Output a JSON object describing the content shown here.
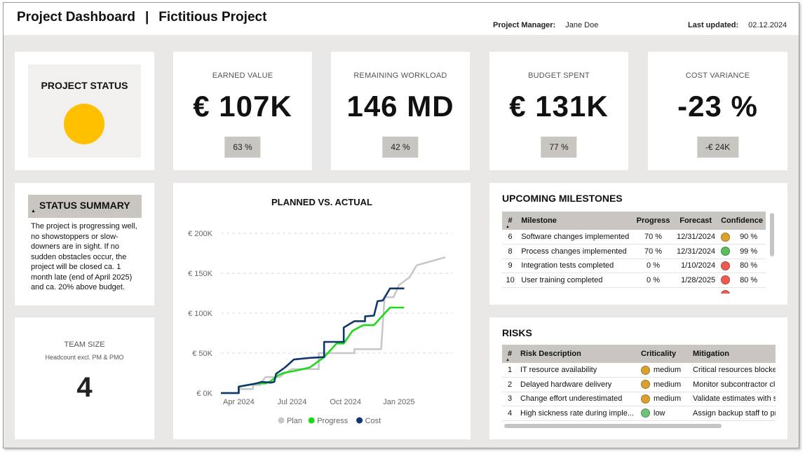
{
  "header": {
    "title": "Project Dashboard",
    "separator": "|",
    "project": "Fictitious Project",
    "pm_label": "Project Manager:",
    "pm_value": "Jane Doe",
    "updated_label": "Last updated:",
    "updated_value": "02.12.2024"
  },
  "status": {
    "title": "PROJECT STATUS",
    "color": "#FFC000"
  },
  "kpis": [
    {
      "label": "EARNED VALUE",
      "value": "€ 107K",
      "badge": "63 %"
    },
    {
      "label": "REMAINING WORKLOAD",
      "value": "146 MD",
      "badge": "42 %"
    },
    {
      "label": "BUDGET SPENT",
      "value": "€ 131K",
      "badge": "77 %"
    },
    {
      "label": "COST VARIANCE",
      "value": "-23 %",
      "badge": "-€ 24K"
    }
  ],
  "summary": {
    "title": "STATUS SUMMARY",
    "text": "The project is progressing well, no showstoppers or slow-downers are in sight. If no sudden obstacles occur, the project will be closed ca. 1 month late (end of April 2025) and ca. 20% above budget."
  },
  "team": {
    "label": "TEAM SIZE",
    "sublabel": "Headcount excl. PM & PMO",
    "value": "4"
  },
  "chart_data": {
    "type": "line",
    "title": "PLANNED VS. ACTUAL",
    "y_ticks": [
      "€ 0K",
      "€ 50K",
      "€ 100K",
      "€ 150K",
      "€ 200K"
    ],
    "x_ticks": [
      "Apr 2024",
      "Jul 2024",
      "Oct 2024",
      "Jan 2025"
    ],
    "ylim": [
      0,
      200
    ],
    "x_unit": "months since Mar 2024",
    "xlim": [
      0,
      13
    ],
    "x_tick_positions": [
      1,
      4,
      7,
      10
    ],
    "grid": true,
    "legend_position": "bottom",
    "series": [
      {
        "name": "Plan",
        "color": "#c8c8c8",
        "points": [
          [
            0,
            0
          ],
          [
            1,
            0
          ],
          [
            1,
            5
          ],
          [
            1.8,
            5
          ],
          [
            1.8,
            10
          ],
          [
            2.2,
            10
          ],
          [
            2.5,
            20
          ],
          [
            3.3,
            20
          ],
          [
            3.6,
            25
          ],
          [
            4.0,
            30
          ],
          [
            5.5,
            30
          ],
          [
            5.5,
            50
          ],
          [
            7.5,
            50
          ],
          [
            7.5,
            55
          ],
          [
            9.0,
            55
          ],
          [
            9.2,
            120
          ],
          [
            9.7,
            120
          ],
          [
            10.0,
            135
          ],
          [
            10.6,
            145
          ],
          [
            11.0,
            160
          ],
          [
            12.6,
            170
          ]
        ]
      },
      {
        "name": "Progress",
        "color": "#1ed81e",
        "points": [
          [
            0,
            0
          ],
          [
            1,
            0
          ],
          [
            1,
            8
          ],
          [
            2.0,
            12
          ],
          [
            2.5,
            12
          ],
          [
            2.8,
            15
          ],
          [
            3.2,
            22
          ],
          [
            3.5,
            25
          ],
          [
            4.2,
            28
          ],
          [
            5.0,
            32
          ],
          [
            5.8,
            45
          ],
          [
            6.5,
            62
          ],
          [
            6.9,
            62
          ],
          [
            7.4,
            78
          ],
          [
            8.0,
            85
          ],
          [
            8.6,
            85
          ],
          [
            9.0,
            95
          ],
          [
            9.5,
            107
          ],
          [
            10.3,
            107
          ]
        ]
      },
      {
        "name": "Cost",
        "color": "#12366e",
        "points": [
          [
            0,
            0
          ],
          [
            1,
            0
          ],
          [
            1,
            8
          ],
          [
            2.0,
            12
          ],
          [
            2.3,
            14
          ],
          [
            2.8,
            13
          ],
          [
            3.0,
            14
          ],
          [
            3.1,
            24
          ],
          [
            3.6,
            32
          ],
          [
            4.1,
            42
          ],
          [
            5.0,
            44
          ],
          [
            5.8,
            45
          ],
          [
            5.8,
            64
          ],
          [
            6.9,
            64
          ],
          [
            6.9,
            82
          ],
          [
            7.5,
            90
          ],
          [
            8.1,
            90
          ],
          [
            8.1,
            96
          ],
          [
            8.6,
            97
          ],
          [
            8.8,
            115
          ],
          [
            9.1,
            116
          ],
          [
            9.5,
            131
          ],
          [
            10.3,
            131
          ]
        ]
      }
    ]
  },
  "milestones": {
    "title": "UPCOMING MILESTONES",
    "columns": [
      "#",
      "Milestone",
      "Progress",
      "Forecast",
      "Confidence"
    ],
    "rows": [
      {
        "num": "6",
        "name": "Software changes implemented",
        "progress": "70 %",
        "forecast": "12/31/2024",
        "color": "#DAA030",
        "confidence": "90 %"
      },
      {
        "num": "8",
        "name": "Process changes implemented",
        "progress": "70 %",
        "forecast": "12/31/2024",
        "color": "#5DBA5D",
        "confidence": "99 %"
      },
      {
        "num": "9",
        "name": "Integration tests completed",
        "progress": "0 %",
        "forecast": "1/10/2024",
        "color": "#EE5A52",
        "confidence": "80 %"
      },
      {
        "num": "10",
        "name": "User training completed",
        "progress": "0 %",
        "forecast": "1/28/2025",
        "color": "#EE5A52",
        "confidence": "80 %"
      }
    ]
  },
  "risks": {
    "title": "RISKS",
    "columns": [
      "#",
      "Risk Description",
      "Criticality",
      "Mitigation"
    ],
    "rows": [
      {
        "num": "1",
        "desc": "IT resource availability",
        "color": "#DAA030",
        "crit": "medium",
        "mit": "Critical resources blocked"
      },
      {
        "num": "2",
        "desc": "Delayed hardware delivery",
        "color": "#DAA030",
        "crit": "medium",
        "mit": "Monitor subcontractor clc"
      },
      {
        "num": "3",
        "desc": "Change effort underestimated",
        "color": "#DAA030",
        "crit": "medium",
        "mit": "Validate estimates with su"
      },
      {
        "num": "4",
        "desc": "High sickness rate during imple...",
        "color": "#6FC27A",
        "crit": "low",
        "mit": "Assign backup staff to pro"
      }
    ]
  }
}
